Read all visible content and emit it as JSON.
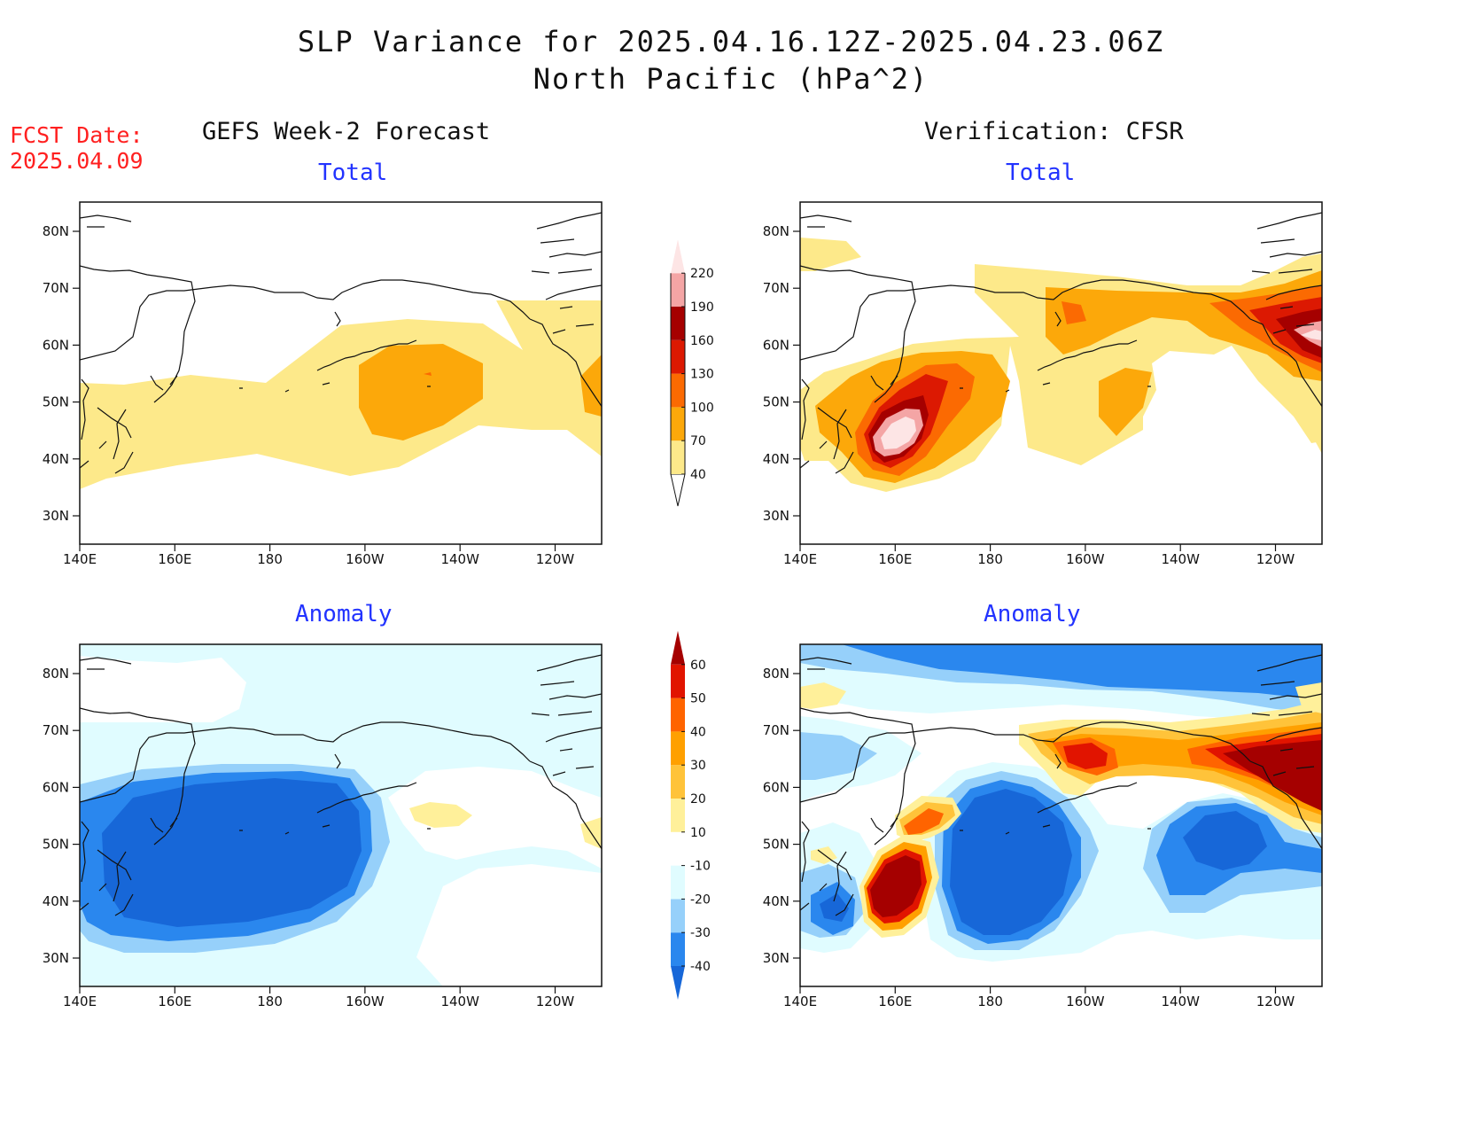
{
  "header": {
    "title_line1": "SLP Variance for 2025.04.16.12Z-2025.04.23.06Z",
    "title_line2": "North Pacific (hPa^2)"
  },
  "forecast_date": {
    "label": "FCST Date:",
    "value": "2025.04.09"
  },
  "columns": {
    "left": "GEFS Week-2 Forecast",
    "right": "Verification: CFSR"
  },
  "panels": [
    {
      "id": "gefs-total",
      "subtitle": "Total"
    },
    {
      "id": "cfsr-total",
      "subtitle": "Total"
    },
    {
      "id": "gefs-anomaly",
      "subtitle": "Anomaly"
    },
    {
      "id": "cfsr-anomaly",
      "subtitle": "Anomaly"
    }
  ],
  "axes": {
    "lon_ticks": [
      "140E",
      "160E",
      "180",
      "160W",
      "140W",
      "120W"
    ],
    "lat_ticks": [
      "30N",
      "40N",
      "50N",
      "60N",
      "70N",
      "80N"
    ]
  },
  "colorbars": {
    "total": {
      "labels": [
        "40",
        "70",
        "100",
        "130",
        "160",
        "190",
        "220"
      ],
      "colors": [
        "#fde98a",
        "#fca80a",
        "#fb6a02",
        "#dc1902",
        "#a50000",
        "#f4a5a5",
        "#fde5e5"
      ]
    },
    "anomaly": {
      "labels": [
        "-40",
        "-30",
        "-20",
        "-10",
        "10",
        "20",
        "30",
        "40",
        "50",
        "60"
      ],
      "colors": [
        "#1767d8",
        "#2a87ee",
        "#96d0fa",
        "#e0fcff",
        "#ffffff",
        "#fff09a",
        "#ffc33a",
        "#ffa000",
        "#ff6400",
        "#e11400",
        "#a50000"
      ]
    }
  }
}
